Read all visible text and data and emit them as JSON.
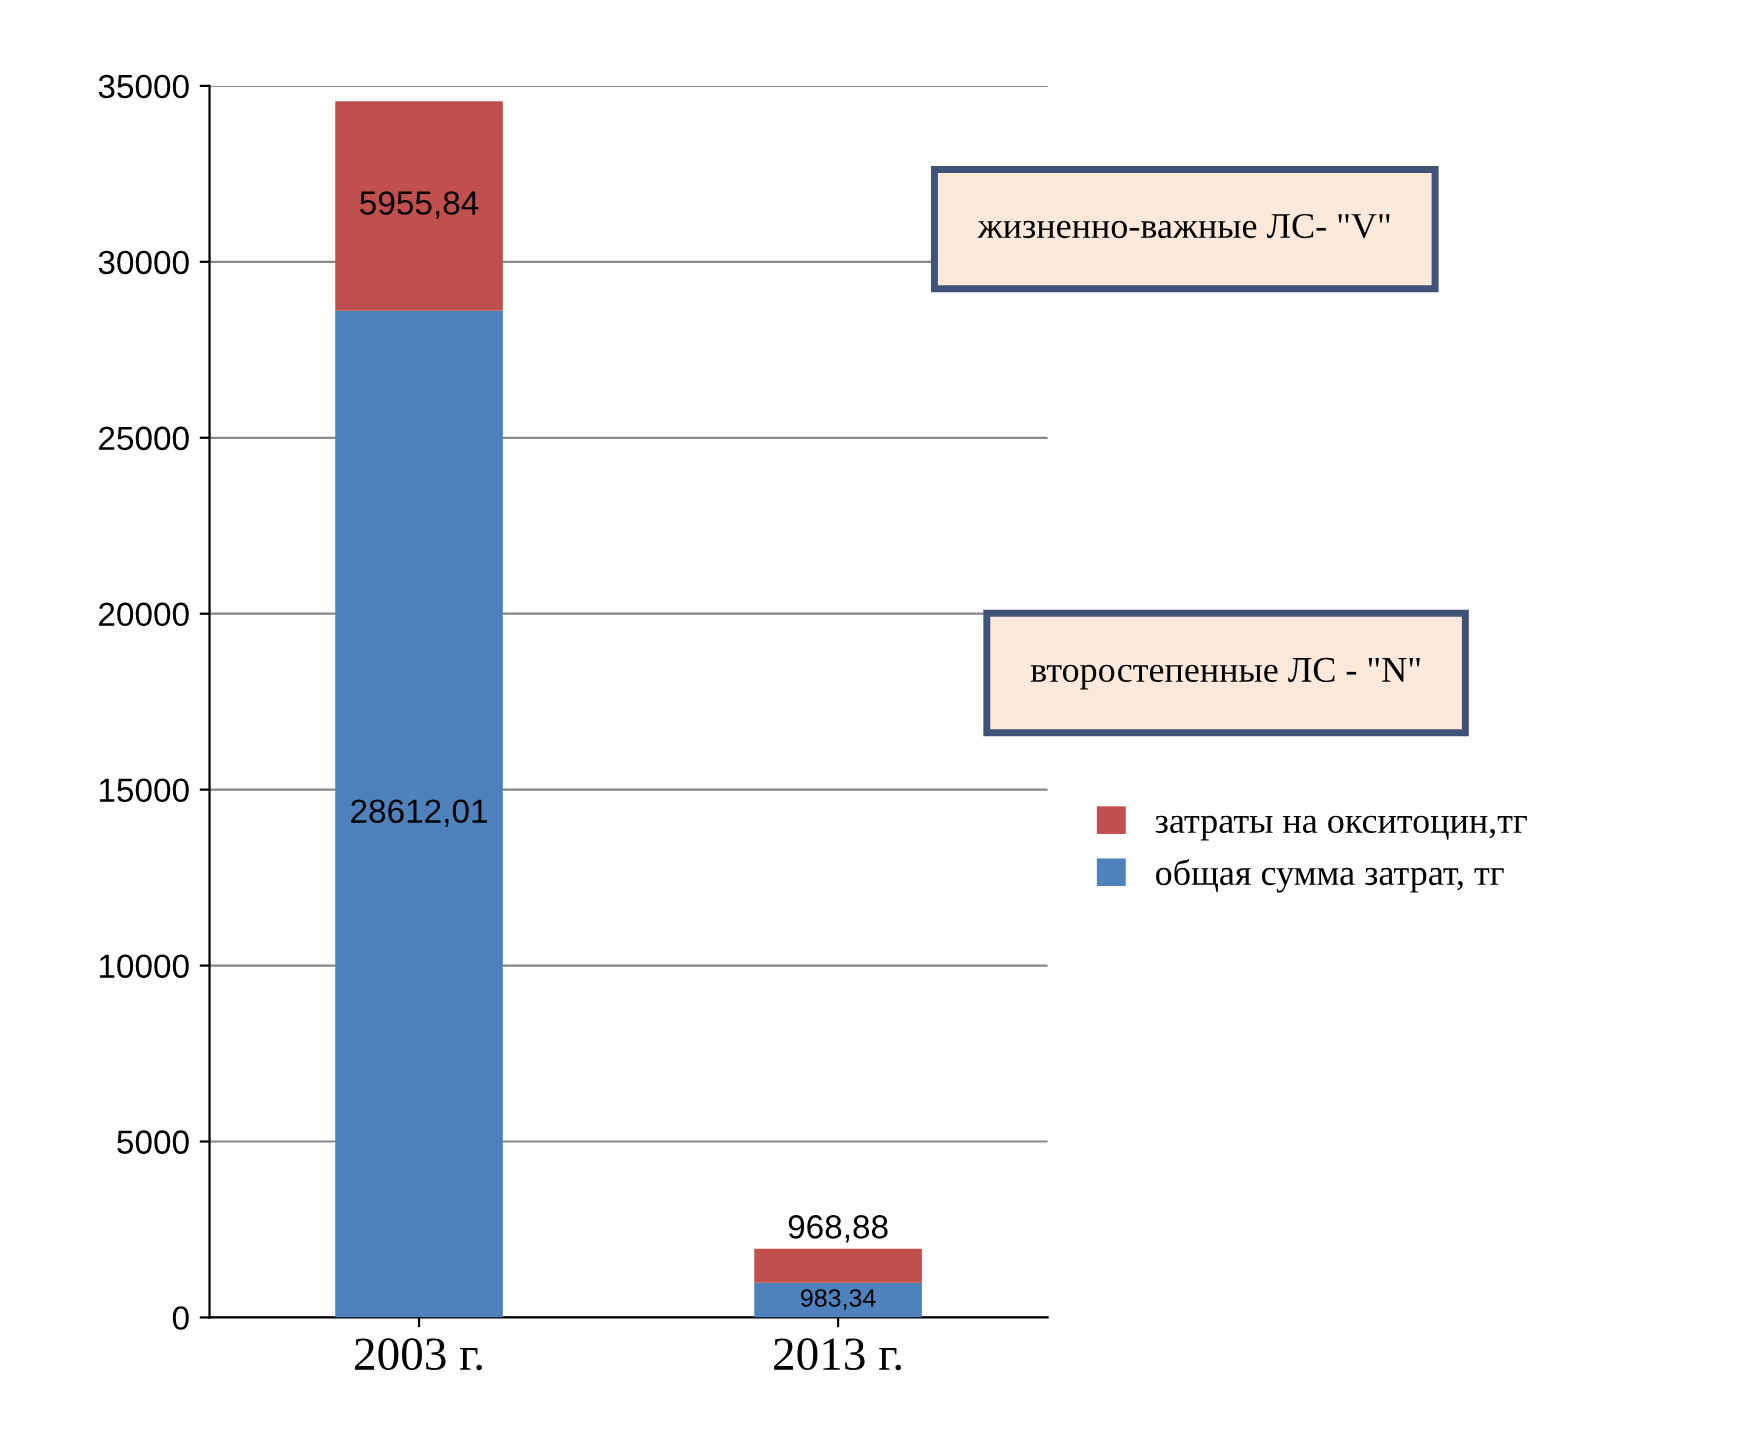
{
  "chart_data": {
    "type": "bar",
    "stacked": true,
    "categories": [
      "2003 г.",
      "2013 г."
    ],
    "series": [
      {
        "name": "общая сумма затрат, тг",
        "color": "#4f81bd",
        "values": [
          28612.01,
          983.34
        ],
        "value_labels": [
          "28612,01",
          "983,34"
        ]
      },
      {
        "name": "затраты на окситоцин,тг",
        "color": "#c0504d",
        "values": [
          5955.84,
          968.88
        ],
        "value_labels": [
          "5955,84",
          "968,88"
        ]
      }
    ],
    "ylim": [
      0,
      35000
    ],
    "yticks": [
      0,
      5000,
      10000,
      15000,
      20000,
      25000,
      30000,
      35000
    ],
    "grid": "y",
    "legend": "right",
    "annotations": [
      "жизненно-важные ЛС- \"V\"",
      "второстепенные ЛС - \"N\""
    ]
  }
}
